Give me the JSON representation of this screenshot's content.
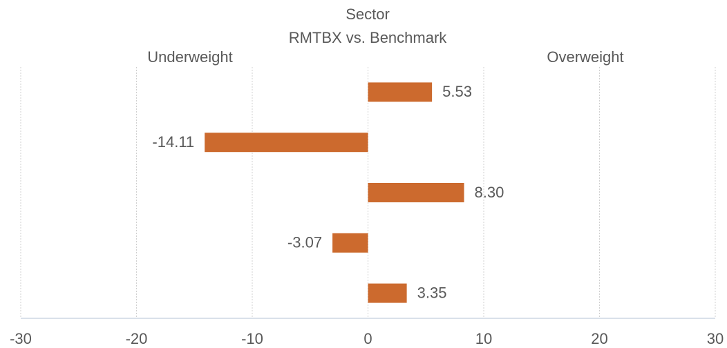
{
  "chart_data": {
    "type": "bar",
    "orientation": "horizontal",
    "title": "Sector",
    "subtitle": "RMTBX vs. Benchmark",
    "annotations": [
      "Underweight",
      "Overweight"
    ],
    "categories": [
      null,
      null,
      null,
      null,
      null
    ],
    "values": [
      5.53,
      -14.11,
      8.3,
      -3.07,
      3.35
    ],
    "value_labels": [
      "5.53",
      "-14.11",
      "8.30",
      "-3.07",
      "3.35"
    ],
    "color": "#cc6a2e",
    "xlim": [
      -30,
      30
    ],
    "xticks": [
      -30,
      -20,
      -10,
      0,
      10,
      20,
      30
    ],
    "grid": true
  }
}
